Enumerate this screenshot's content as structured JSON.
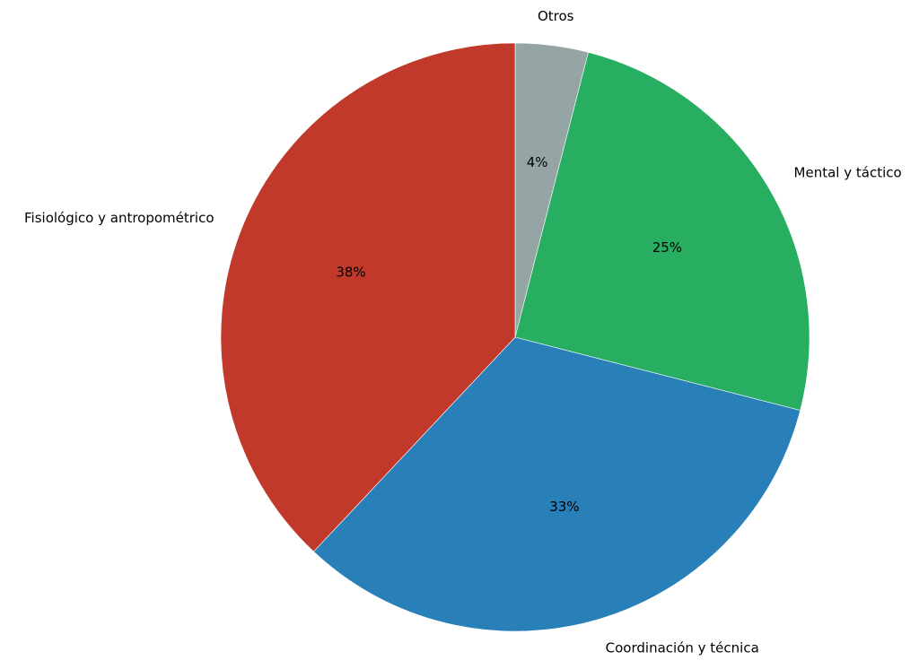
{
  "chart_data": {
    "type": "pie",
    "slices": [
      {
        "label": "Otros",
        "value": 4,
        "value_label": "4%",
        "color": "#95a5a6"
      },
      {
        "label": "Mental y táctico",
        "value": 25,
        "value_label": "25%",
        "color": "#27ae60"
      },
      {
        "label": "Coordinación y técnica",
        "value": 33,
        "value_label": "33%",
        "color": "#2980b9"
      },
      {
        "label": "Fisiológico y antropométrico",
        "value": 38,
        "value_label": "38%",
        "color": "#c0392b"
      }
    ],
    "start_angle": "top",
    "direction": "clockwise",
    "legend": "none"
  }
}
